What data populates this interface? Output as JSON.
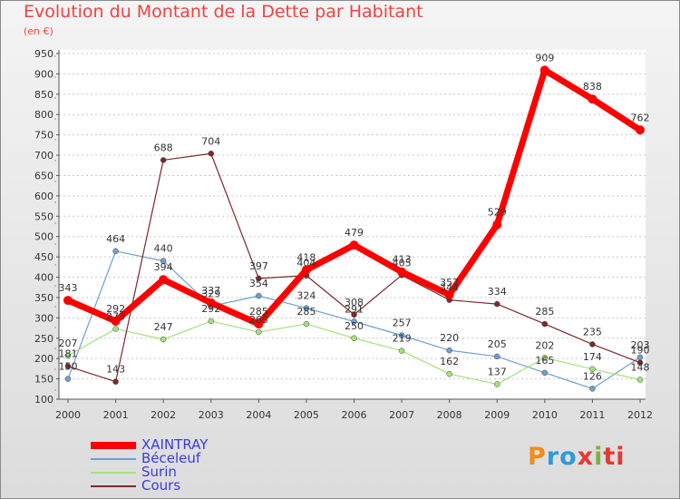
{
  "header": {
    "title": "Evolution du Montant de la Dette par Habitant",
    "subtitle": "(en €)"
  },
  "logo": {
    "parts": [
      "P",
      "ro",
      "x",
      "i",
      "ti"
    ]
  },
  "colors": {
    "title": "#f04242",
    "legend_text": "#3c3cdc",
    "logo": [
      "#f08c1e",
      "#2f9ad8",
      "#e53935",
      "#7cb342",
      "#e53935"
    ]
  },
  "chart_data": {
    "type": "line",
    "title": "Evolution du Montant de la Dette par Habitant",
    "subtitle": "(en €)",
    "x": [
      "2000",
      "2001",
      "2002",
      "2003",
      "2004",
      "2005",
      "2006",
      "2007",
      "2008",
      "2009",
      "2010",
      "2011",
      "2012"
    ],
    "ylim": [
      100,
      950
    ],
    "yticks": [
      100,
      150,
      200,
      250,
      300,
      350,
      400,
      450,
      500,
      550,
      600,
      650,
      700,
      750,
      800,
      850,
      900,
      950
    ],
    "grid": "horizontal dashed",
    "legend_position": "bottom-left",
    "series": [
      {
        "name": "XAINTRAY",
        "color": "#ff0000",
        "values": [
          343,
          292,
          394,
          337,
          285,
          418,
          479,
          413,
          357,
          529,
          909,
          838,
          762
        ]
      },
      {
        "name": "Béceleuf",
        "color": "#6f9fcf",
        "values": [
          150,
          464,
          440,
          329,
          354,
          324,
          291,
          257,
          220,
          205,
          165,
          126,
          203
        ]
      },
      {
        "name": "Surin",
        "color": "#a6e07a",
        "values": [
          207,
          273,
          247,
          292,
          265,
          285,
          250,
          219,
          162,
          137,
          202,
          174,
          148
        ]
      },
      {
        "name": "Cours",
        "color": "#7a2a2a",
        "values": [
          181,
          143,
          688,
          704,
          397,
          404,
          308,
          405,
          344,
          334,
          285,
          235,
          190
        ]
      }
    ]
  }
}
